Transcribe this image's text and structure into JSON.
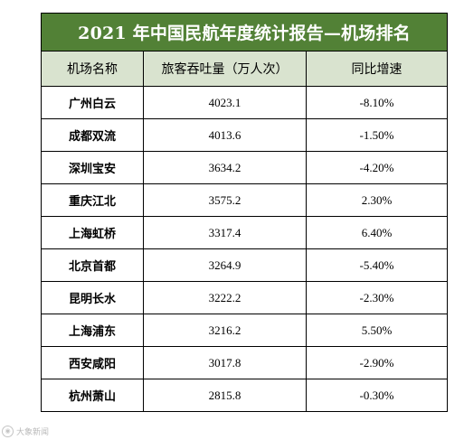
{
  "table": {
    "title": "2021 年中国民航年度统计报告—机场排名",
    "headers": [
      "机场名称",
      "旅客吞吐量（万人次）",
      "同比增速"
    ],
    "rows": [
      [
        "广州白云",
        "4023.1",
        "-8.10%"
      ],
      [
        "成都双流",
        "4013.6",
        "-1.50%"
      ],
      [
        "深圳宝安",
        "3634.2",
        "-4.20%"
      ],
      [
        "重庆江北",
        "3575.2",
        "2.30%"
      ],
      [
        "上海虹桥",
        "3317.4",
        "6.40%"
      ],
      [
        "北京首都",
        "3264.9",
        "-5.40%"
      ],
      [
        "昆明长水",
        "3222.2",
        "-2.30%"
      ],
      [
        "上海浦东",
        "3216.2",
        "5.50%"
      ],
      [
        "西安咸阳",
        "3017.8",
        "-2.90%"
      ],
      [
        "杭州萧山",
        "2815.8",
        "-0.30%"
      ]
    ]
  },
  "watermark": {
    "text": "大象新闻"
  },
  "colors": {
    "title_bg": "#528136",
    "header_bg": "#d9e3cf",
    "border": "#000000"
  }
}
